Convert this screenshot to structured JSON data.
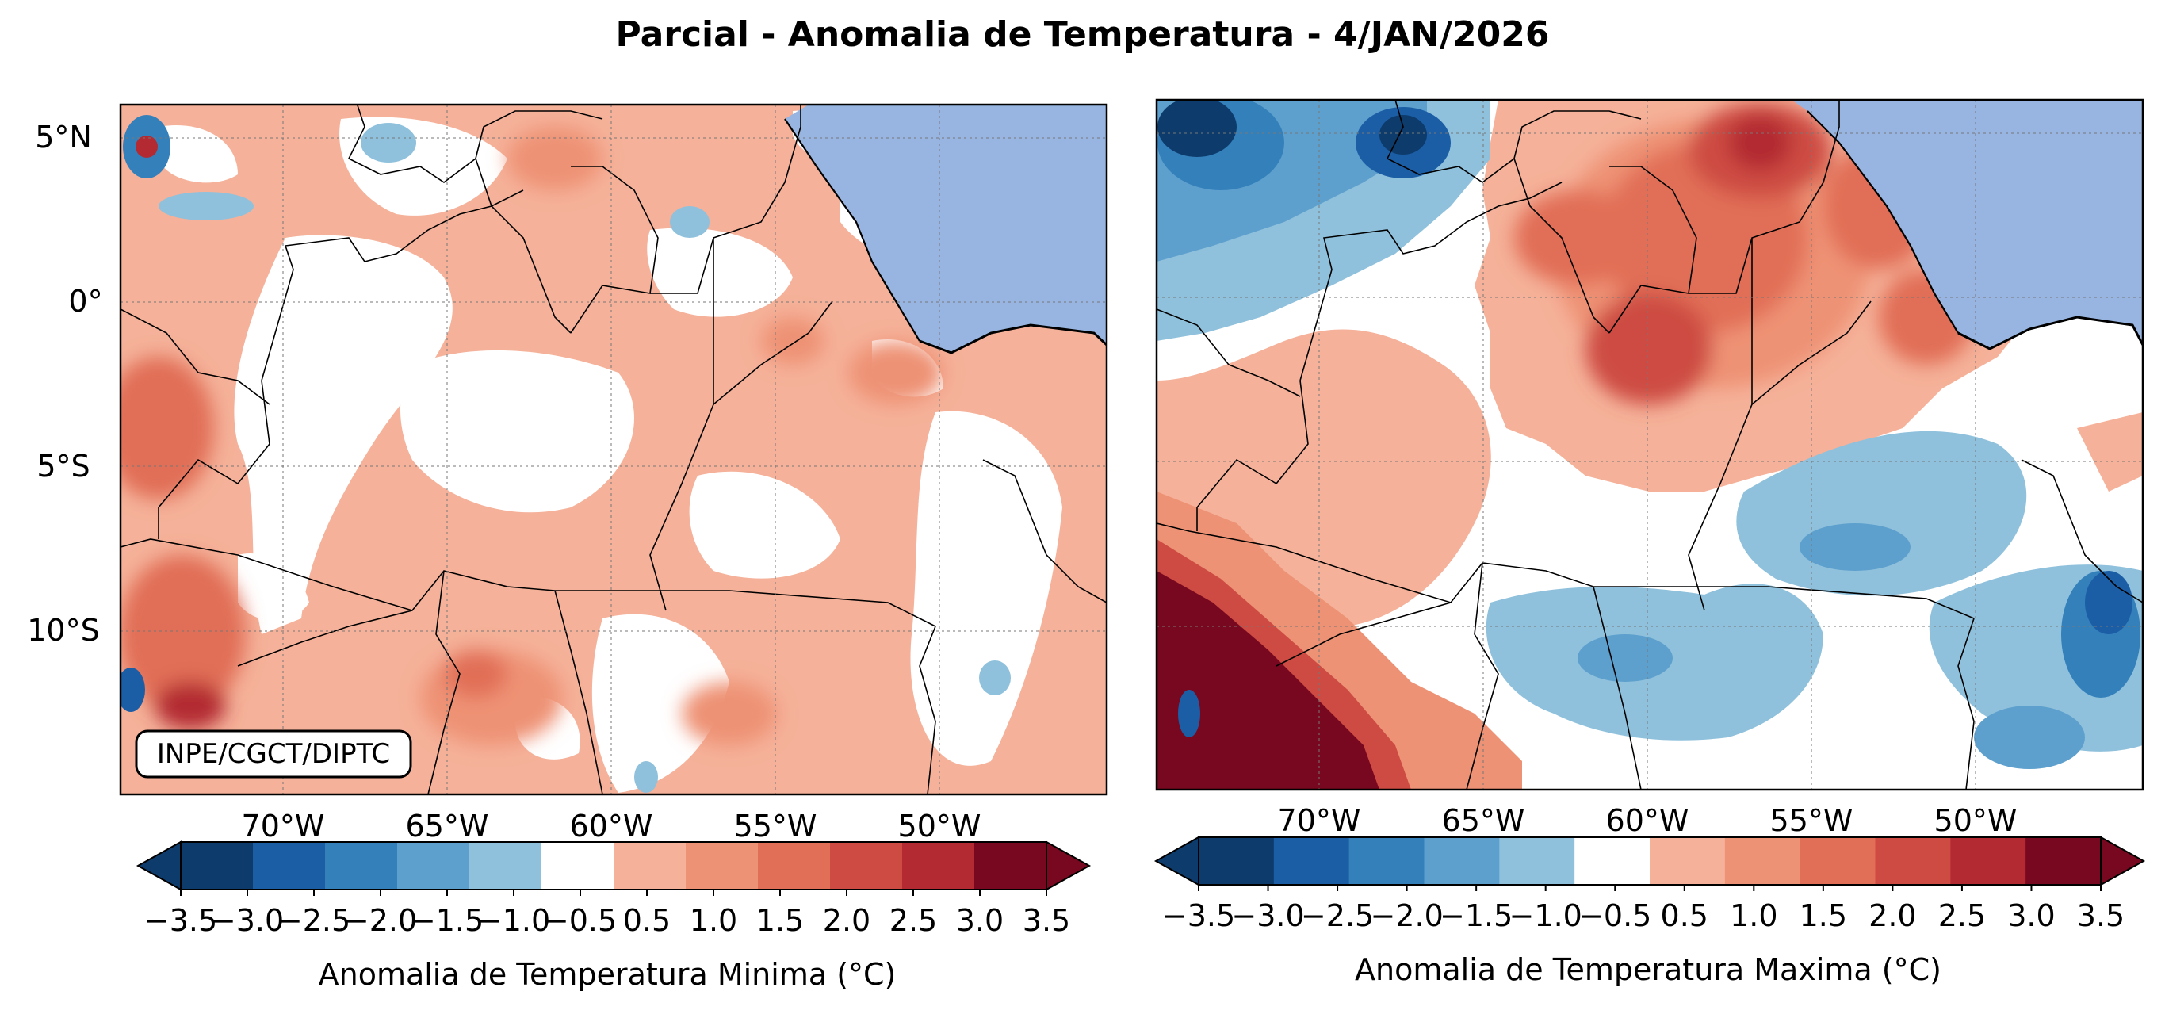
{
  "title": "Parcial - Anomalia de Temperatura - 4/JAN/2026",
  "credit": "INPE/CGCT/DIPTC",
  "colors": {
    "ocean": "#97b5e0",
    "scale": [
      "#0d3b6c",
      "#1c5ea6",
      "#3480bb",
      "#5ea0cd",
      "#8fc1dc",
      "#ffffff",
      "#f5b199",
      "#ee9275",
      "#e16e56",
      "#cd4b43",
      "#b32a32",
      "#78081f"
    ]
  },
  "maps": [
    {
      "variable": "Anomalia de Temperatura Minima ( ° C)",
      "lat_labels": [
        "5°N",
        "0°",
        "5°S",
        "10°S"
      ],
      "lon_labels": [
        "70°W",
        "65°W",
        "60°W",
        "55°W",
        "50°W"
      ],
      "colorbar_ticks": [
        "−3.5",
        "−3.0",
        "−2.5",
        "−2.0",
        "−1.5",
        "−1.0",
        "−0.5",
        "0.5",
        "1.0",
        "1.5",
        "2.0",
        "2.5",
        "3.0",
        "3.5"
      ],
      "colorbar_title": "Anomalia de Temperatura Minima ($^\\circ$C)"
    },
    {
      "variable": "Anomalia de Temperatura Maxima ( ° C)",
      "lat_labels": [],
      "lon_labels": [
        "70°W",
        "65°W",
        "60°W",
        "55°W",
        "50°W"
      ],
      "colorbar_ticks": [
        "−3.5",
        "−3.0",
        "−2.5",
        "−2.0",
        "−1.5",
        "−1.0",
        "−0.5",
        "0.5",
        "1.0",
        "1.5",
        "2.0",
        "2.5",
        "3.0",
        "3.5"
      ],
      "colorbar_title": "Anomalia de Temperatura Maxima ($^\\circ$C)"
    }
  ],
  "labels": {
    "cb1": "Anomalia de Temperatura Minima (°C)",
    "cb2": "Anomalia de Temperatura Maxima (°C)"
  }
}
